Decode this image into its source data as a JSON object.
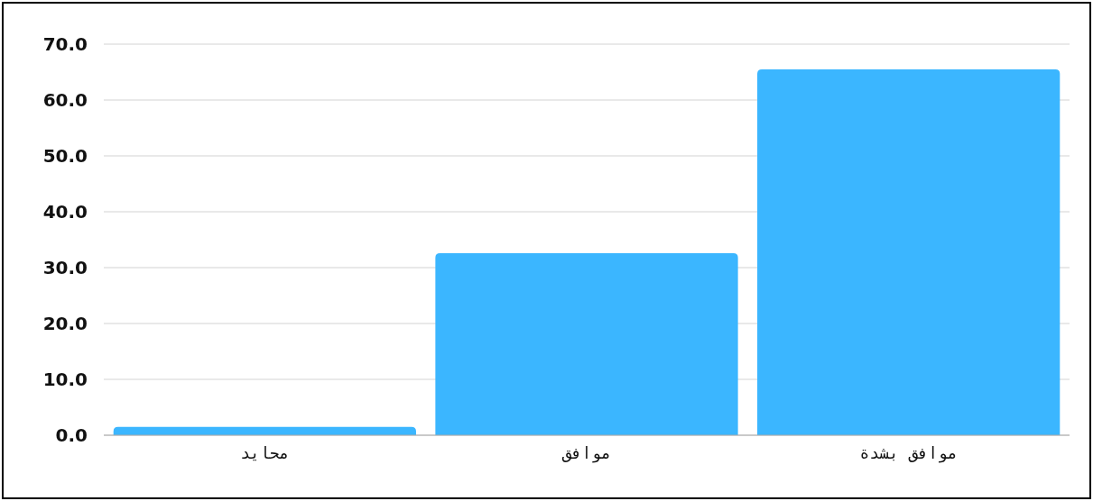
{
  "chart_data": {
    "type": "bar",
    "categories": [
      "محايد",
      "موافق",
      "موافق بشدة"
    ],
    "values": [
      1.5,
      32.6,
      65.5
    ],
    "color": "#3bb6ff",
    "ylim": [
      0,
      70
    ],
    "yticks": [
      {
        "value": 0,
        "label": "0.0"
      },
      {
        "value": 10,
        "label": "10.0"
      },
      {
        "value": 20,
        "label": "20.0"
      },
      {
        "value": 30,
        "label": "30.0"
      },
      {
        "value": 40,
        "label": "40.0"
      },
      {
        "value": 50,
        "label": "50.0"
      },
      {
        "value": 60,
        "label": "60.0"
      },
      {
        "value": 70,
        "label": "70.0"
      }
    ],
    "grid": "y"
  }
}
